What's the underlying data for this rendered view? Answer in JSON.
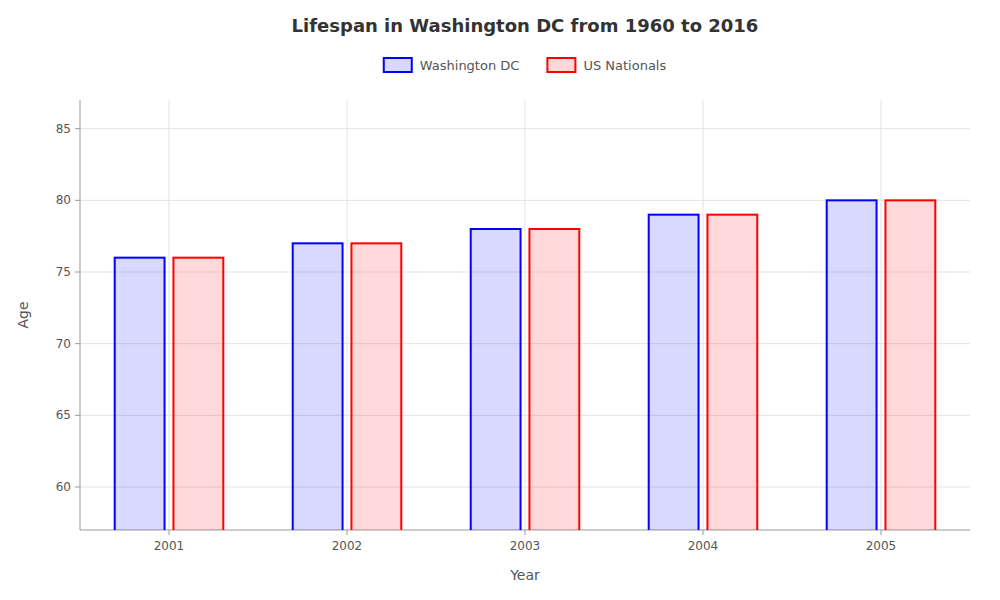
{
  "chart_data": {
    "type": "bar",
    "title": "Lifespan in Washington DC from 1960 to 2016",
    "xlabel": "Year",
    "ylabel": "Age",
    "categories": [
      "2001",
      "2002",
      "2003",
      "2004",
      "2005"
    ],
    "series": [
      {
        "name": "Washington DC",
        "color": "#0000ff",
        "values": [
          76,
          77,
          78,
          79,
          80
        ]
      },
      {
        "name": "US Nationals",
        "color": "#ff0000",
        "values": [
          76,
          77,
          78,
          79,
          80
        ]
      }
    ],
    "ylim": [
      57,
      87
    ],
    "yticks": [
      60,
      65,
      70,
      75,
      80,
      85
    ],
    "grid": true,
    "legend": "top"
  }
}
